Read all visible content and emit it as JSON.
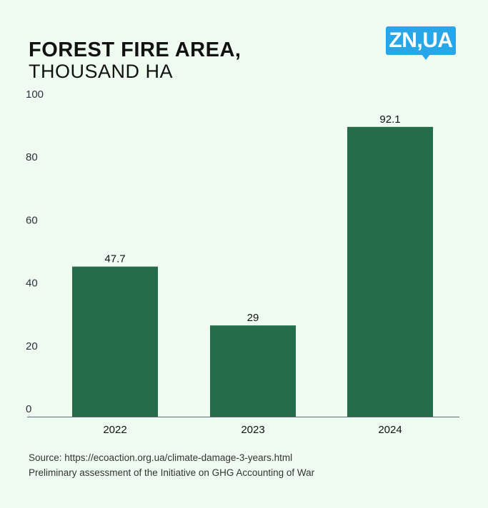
{
  "header": {
    "title": "FOREST FIRE AREA,",
    "subtitle": "THOUSAND HA",
    "logo_text": "ZN,UA"
  },
  "colors": {
    "bar": "#256d4a",
    "logo": "#29a6e8",
    "axis": "#5a6b7a"
  },
  "chart_data": {
    "type": "bar",
    "title": "FOREST FIRE AREA,",
    "subtitle": "THOUSAND HA",
    "categories": [
      "2022",
      "2023",
      "2024"
    ],
    "values": [
      47.7,
      29,
      92.1
    ],
    "value_labels": [
      "47.7",
      "29",
      "92.1"
    ],
    "xlabel": "",
    "ylabel": "",
    "ylim": [
      0,
      100
    ],
    "yticks": [
      0,
      20,
      40,
      60,
      80,
      100
    ],
    "grid": false,
    "legend": "none"
  },
  "footer": {
    "source": "Source: https://ecoaction.org.ua/climate-damage-3-years.html",
    "note": "Preliminary assessment of the Initiative on GHG Accounting of War"
  }
}
